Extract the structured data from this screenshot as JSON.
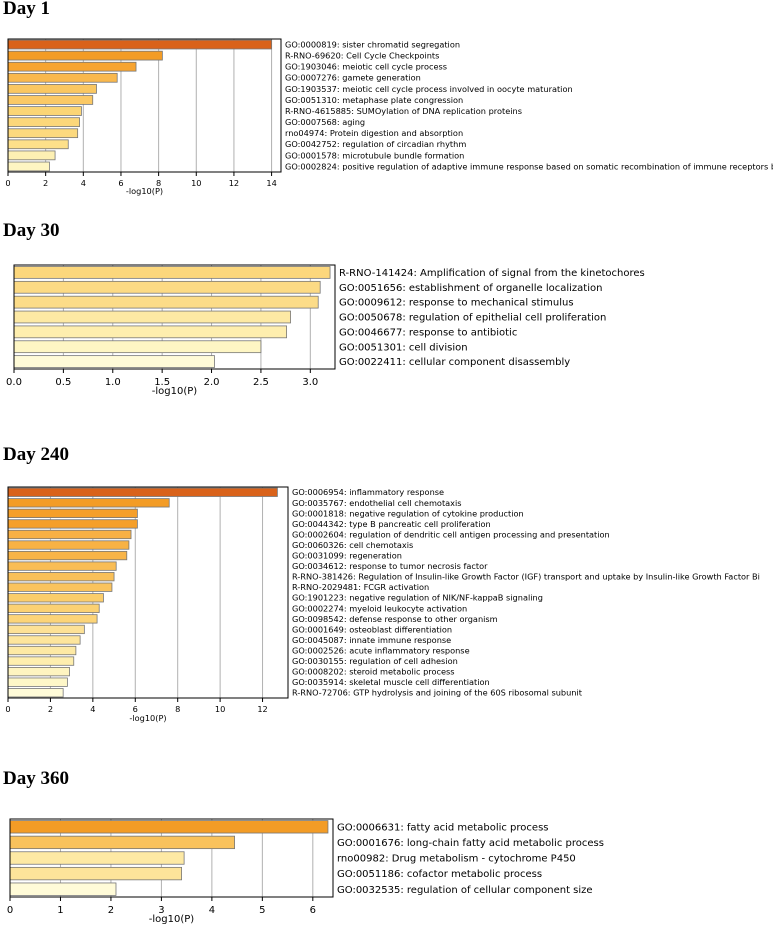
{
  "colors": {
    "bar_stroke": "#777777",
    "grid": "#b0b0b0",
    "axis": "#000000"
  },
  "chart_data": [
    {
      "type": "bar",
      "orientation": "horizontal",
      "title": "Day 1",
      "xlabel": "-log10(P)",
      "xlim": [
        0,
        14.5
      ],
      "xticks": [
        0,
        2,
        4,
        6,
        8,
        10,
        12,
        14
      ],
      "grid": "vertical",
      "categories": [
        "GO:0000819: sister chromatid segregation",
        "R-RNO-69620: Cell Cycle Checkpoints",
        "GO:1903046: meiotic cell cycle process",
        "GO:0007276: gamete generation",
        "GO:1903537: meiotic cell cycle process involved in oocyte maturation",
        "GO:0051310: metaphase plate congression",
        "R-RNO-4615885: SUMOylation of DNA replication proteins",
        "GO:0007568: aging",
        "rno04974: Protein digestion and absorption",
        "GO:0042752: regulation of circadian rhythm",
        "GO:0001578: microtubule bundle formation",
        "GO:0002824: positive regulation of adaptive immune response based on somatic recombination of immune receptors b"
      ],
      "values": [
        14.0,
        8.2,
        6.8,
        5.8,
        4.7,
        4.5,
        3.9,
        3.8,
        3.7,
        3.2,
        2.5,
        2.2
      ],
      "colors": [
        "#d9621a",
        "#f39c26",
        "#f7a431",
        "#f9b84d",
        "#fac761",
        "#fbc965",
        "#fbd575",
        "#fcd77a",
        "#fcd97e",
        "#fde08a",
        "#fdf0b3",
        "#fef5c2"
      ]
    },
    {
      "type": "bar",
      "orientation": "horizontal",
      "title": "Day 30",
      "xlabel": "-log10(P)",
      "xlim": [
        0,
        3.25
      ],
      "xticks": [
        0.0,
        0.5,
        1.0,
        1.5,
        2.0,
        2.5,
        3.0
      ],
      "grid": "vertical",
      "categories": [
        "R-RNO-141424: Amplification of signal from the kinetochores",
        "GO:0051656: establishment of organelle localization",
        "GO:0009612: response to mechanical stimulus",
        "GO:0050678: regulation of epithelial cell proliferation",
        "GO:0046677: response to antibiotic",
        "GO:0051301: cell division",
        "GO:0022411: cellular component disassembly"
      ],
      "values": [
        3.2,
        3.1,
        3.08,
        2.8,
        2.76,
        2.5,
        2.03
      ],
      "colors": [
        "#fcd77c",
        "#fcda84",
        "#fcdc88",
        "#fde9a4",
        "#feeeae",
        "#fef6c4",
        "#fffbd8"
      ]
    },
    {
      "type": "bar",
      "orientation": "horizontal",
      "title": "Day 240",
      "xlabel": "-log10(P)",
      "xlim": [
        0,
        13.2
      ],
      "xticks": [
        0,
        2,
        4,
        6,
        8,
        10,
        12
      ],
      "grid": "vertical",
      "categories": [
        "GO:0006954: inflammatory response",
        "GO:0035767: endothelial cell chemotaxis",
        "GO:0001818: negative regulation of cytokine production",
        "GO:0044342: type B pancreatic cell proliferation",
        "GO:0002604: regulation of dendritic cell antigen processing and presentation",
        "GO:0060326: cell chemotaxis",
        "GO:0031099: regeneration",
        "GO:0034612: response to tumor necrosis factor",
        "R-RNO-381426: Regulation of Insulin-like Growth Factor (IGF) transport and uptake by Insulin-like Growth Factor Bi",
        "R-RNO-2029481: FCGR activation",
        "GO:1901223: negative regulation of NIK/NF-kappaB signaling",
        "GO:0002274: myeloid leukocyte activation",
        "GO:0098542: defense response to other organism",
        "GO:0001649: osteoblast differentiation",
        "GO:0045087: innate immune response",
        "GO:0002526: acute inflammatory response",
        "GO:0030155: regulation of cell adhesion",
        "GO:0008202: steroid metabolic process",
        "GO:0035914: skeletal muscle cell differentiation",
        "R-RNO-72706: GTP hydrolysis and joining of the 60S ribosomal subunit"
      ],
      "values": [
        12.7,
        7.6,
        6.1,
        6.1,
        5.8,
        5.7,
        5.6,
        5.1,
        5.0,
        4.9,
        4.5,
        4.3,
        4.2,
        3.6,
        3.4,
        3.2,
        3.1,
        2.9,
        2.8,
        2.6
      ],
      "colors": [
        "#d9621a",
        "#f39c26",
        "#f59f2a",
        "#f59f2a",
        "#f8b044",
        "#f8b244",
        "#f8b447",
        "#f9bd55",
        "#f9c059",
        "#fac35d",
        "#fbcd6b",
        "#fbd173",
        "#fcd478",
        "#fde196",
        "#fde59c",
        "#fde9a4",
        "#feeeae",
        "#fef4c0",
        "#fef7c8",
        "#fffbd8"
      ]
    },
    {
      "type": "bar",
      "orientation": "horizontal",
      "title": "Day 360",
      "xlabel": "-log10(P)",
      "xlim": [
        0,
        6.4
      ],
      "xticks": [
        0,
        1,
        2,
        3,
        4,
        5,
        6
      ],
      "grid": "vertical",
      "categories": [
        "GO:0006631: fatty acid metabolic process",
        "GO:0001676: long-chain fatty acid metabolic process",
        "rno00982: Drug metabolism - cytochrome P450",
        "GO:0051186: cofactor metabolic process",
        "GO:0032535: regulation of cellular component size"
      ],
      "values": [
        6.3,
        4.45,
        3.45,
        3.4,
        2.1
      ],
      "colors": [
        "#f39c26",
        "#f9c25c",
        "#fde9a4",
        "#fde49a",
        "#fffbd8"
      ]
    }
  ]
}
